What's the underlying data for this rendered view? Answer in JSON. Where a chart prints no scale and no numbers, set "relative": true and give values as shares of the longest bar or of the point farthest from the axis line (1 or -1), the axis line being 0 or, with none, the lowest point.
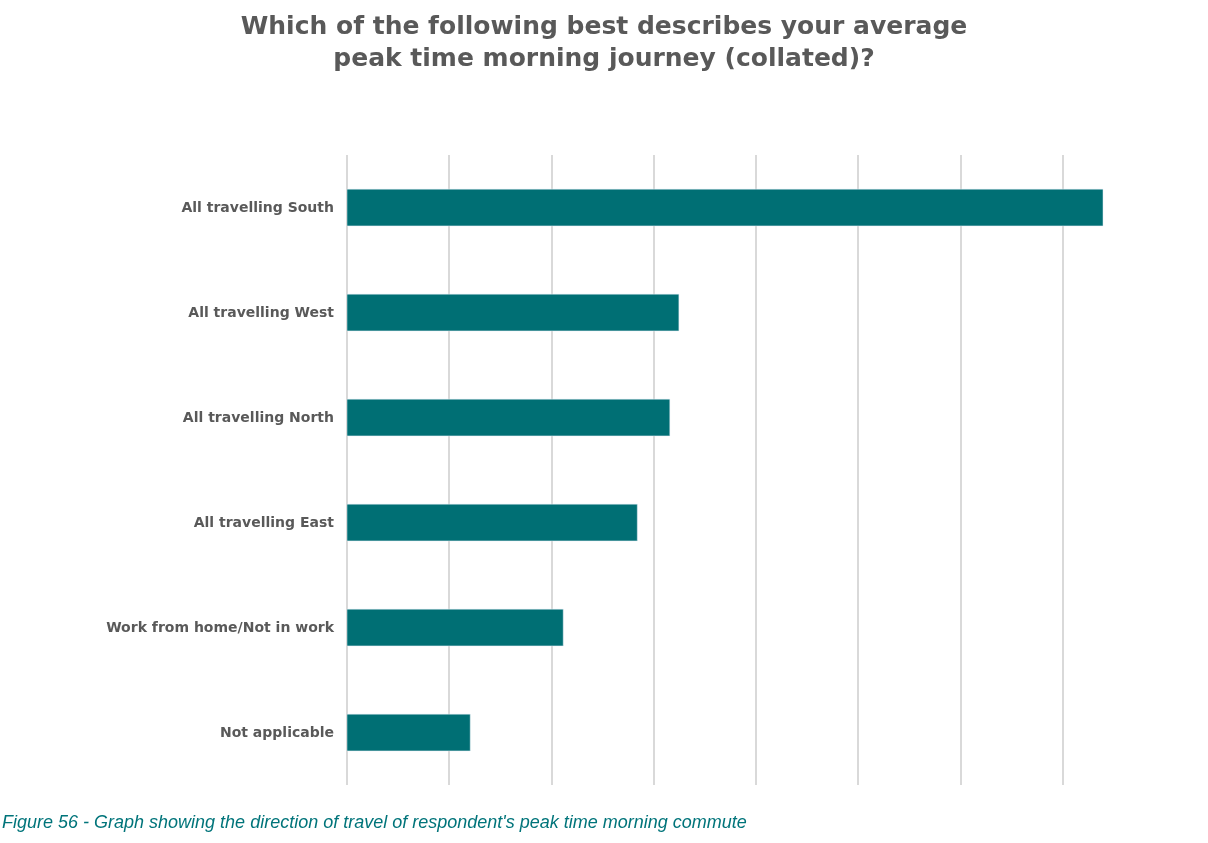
{
  "chart_data": {
    "type": "bar",
    "orientation": "horizontal",
    "relative": true,
    "title": "Which of the following best describes your average peak time morning journey (collated)?",
    "categories": [
      "All travelling South",
      "All travelling West",
      "All travelling North",
      "All travelling East",
      "Work from home/Not in work",
      "Not applicable"
    ],
    "values": [
      1,
      0.439,
      0.427,
      0.384,
      0.286,
      0.163
    ],
    "color": "#006f74",
    "grid": "x",
    "annotations": [
      "Figure 56 - Graph showing the direction of travel of respondent's peak time morning commute"
    ]
  }
}
